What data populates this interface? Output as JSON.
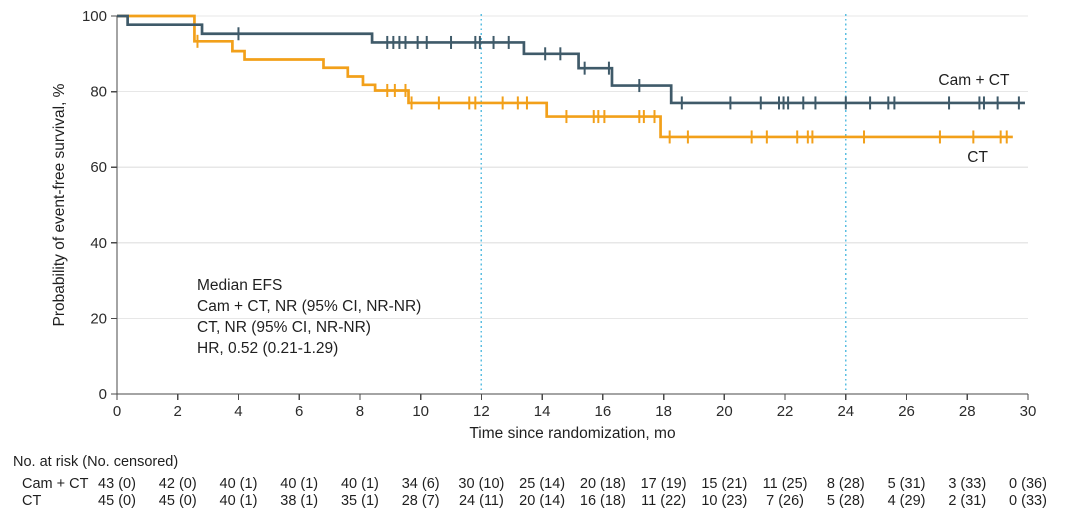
{
  "chart_data": {
    "type": "line",
    "chart_style": "kaplan-meier-step",
    "title": "",
    "xlabel": "Time since randomization, mo",
    "ylabel": "Probability of event-free survival, %",
    "xlim": [
      0,
      30
    ],
    "ylim": [
      0,
      100
    ],
    "x_ticks": [
      0,
      2,
      4,
      6,
      8,
      10,
      12,
      14,
      16,
      18,
      20,
      22,
      24,
      26,
      28,
      30
    ],
    "y_ticks": [
      0,
      20,
      40,
      60,
      80,
      100
    ],
    "grid": "horizontal",
    "grid_color": "#e7e7e7",
    "axis_color": "#4a4a4a",
    "text_color": "#1f1f1f",
    "reference_lines_x": [
      12,
      24
    ],
    "reference_line_color": "#5abee1",
    "annotation": {
      "lines": [
        "Median EFS",
        "Cam + CT, NR (95% CI, NR-NR)",
        "CT, NR (95% CI, NR-NR)",
        "HR, 0.52 (0.21-1.29)"
      ]
    },
    "series": [
      {
        "key": "ct",
        "name": "CT",
        "color": "#f2a01a",
        "label": {
          "text": "CT",
          "x": 28.0,
          "y": 61.4
        },
        "steps": [
          [
            0,
            100
          ],
          [
            2.55,
            93.3
          ],
          [
            3.8,
            90.7
          ],
          [
            4.2,
            88.5
          ],
          [
            6.8,
            86.3
          ],
          [
            7.6,
            84.0
          ],
          [
            8.1,
            81.8
          ],
          [
            8.5,
            80.3
          ],
          [
            9.6,
            77.0
          ],
          [
            14.15,
            73.4
          ],
          [
            17.9,
            68.0
          ]
        ],
        "end_x": 29.5,
        "censor_marks": [
          [
            2.65,
            93.3
          ],
          [
            8.9,
            80.3
          ],
          [
            9.15,
            80.3
          ],
          [
            9.5,
            80.3
          ],
          [
            9.7,
            77.0
          ],
          [
            10.6,
            77.0
          ],
          [
            11.6,
            77.0
          ],
          [
            11.8,
            77.0
          ],
          [
            12.7,
            77.0
          ],
          [
            13.2,
            77.0
          ],
          [
            13.5,
            77.0
          ],
          [
            14.8,
            73.4
          ],
          [
            15.7,
            73.4
          ],
          [
            15.85,
            73.4
          ],
          [
            16.05,
            73.4
          ],
          [
            17.2,
            73.4
          ],
          [
            17.35,
            73.4
          ],
          [
            17.7,
            73.4
          ],
          [
            18.2,
            68.0
          ],
          [
            18.8,
            68.0
          ],
          [
            20.9,
            68.0
          ],
          [
            21.4,
            68.0
          ],
          [
            22.4,
            68.0
          ],
          [
            22.75,
            68.0
          ],
          [
            22.9,
            68.0
          ],
          [
            24.6,
            68.0
          ],
          [
            27.1,
            68.0
          ],
          [
            28.2,
            68.0
          ],
          [
            29.1,
            68.0
          ],
          [
            29.3,
            68.0
          ]
        ]
      },
      {
        "key": "cam-ct",
        "name": "Cam + CT",
        "color": "#3f5a69",
        "label": {
          "text": "Cam + CT",
          "x": 27.05,
          "y": 81.7
        },
        "steps": [
          [
            0,
            100
          ],
          [
            0.35,
            97.7
          ],
          [
            2.8,
            95.3
          ],
          [
            8.4,
            93.0
          ],
          [
            13.4,
            90.0
          ],
          [
            15.2,
            86.2
          ],
          [
            16.3,
            81.6
          ],
          [
            18.25,
            77.0
          ]
        ],
        "end_x": 29.9,
        "censor_marks": [
          [
            4.0,
            95.3
          ],
          [
            8.9,
            93.0
          ],
          [
            9.1,
            93.0
          ],
          [
            9.3,
            93.0
          ],
          [
            9.5,
            93.0
          ],
          [
            9.9,
            93.0
          ],
          [
            10.2,
            93.0
          ],
          [
            11.0,
            93.0
          ],
          [
            11.8,
            93.0
          ],
          [
            11.95,
            93.0
          ],
          [
            12.4,
            93.0
          ],
          [
            12.9,
            93.0
          ],
          [
            14.1,
            90.0
          ],
          [
            14.6,
            90.0
          ],
          [
            15.4,
            86.2
          ],
          [
            16.2,
            86.2
          ],
          [
            17.2,
            81.6
          ],
          [
            18.6,
            77.0
          ],
          [
            20.2,
            77.0
          ],
          [
            21.2,
            77.0
          ],
          [
            21.8,
            77.0
          ],
          [
            21.95,
            77.0
          ],
          [
            22.1,
            77.0
          ],
          [
            22.6,
            77.0
          ],
          [
            23.0,
            77.0
          ],
          [
            24.0,
            77.0
          ],
          [
            24.8,
            77.0
          ],
          [
            25.4,
            77.0
          ],
          [
            25.6,
            77.0
          ],
          [
            27.4,
            77.0
          ],
          [
            28.4,
            77.0
          ],
          [
            28.55,
            77.0
          ],
          [
            29.0,
            77.0
          ],
          [
            29.7,
            77.0
          ]
        ]
      }
    ],
    "risk_table": {
      "header": "No. at risk (No. censored)",
      "times": [
        0,
        2,
        4,
        6,
        8,
        10,
        12,
        14,
        16,
        18,
        20,
        22,
        24,
        26,
        28,
        30
      ],
      "rows": [
        {
          "label": "Cam + CT",
          "values": [
            "43 (0)",
            "42 (0)",
            "40 (1)",
            "40 (1)",
            "40 (1)",
            "34 (6)",
            "30 (10)",
            "25 (14)",
            "20 (18)",
            "17 (19)",
            "15 (21)",
            "11 (25)",
            "8 (28)",
            "5 (31)",
            "3 (33)",
            "0 (36)"
          ]
        },
        {
          "label": "CT",
          "values": [
            "45 (0)",
            "45 (0)",
            "40 (1)",
            "38 (1)",
            "35 (1)",
            "28 (7)",
            "24 (11)",
            "20 (14)",
            "16 (18)",
            "11 (22)",
            "10 (23)",
            "7 (26)",
            "5 (28)",
            "4 (29)",
            "2 (31)",
            "0 (33)"
          ]
        }
      ]
    }
  }
}
